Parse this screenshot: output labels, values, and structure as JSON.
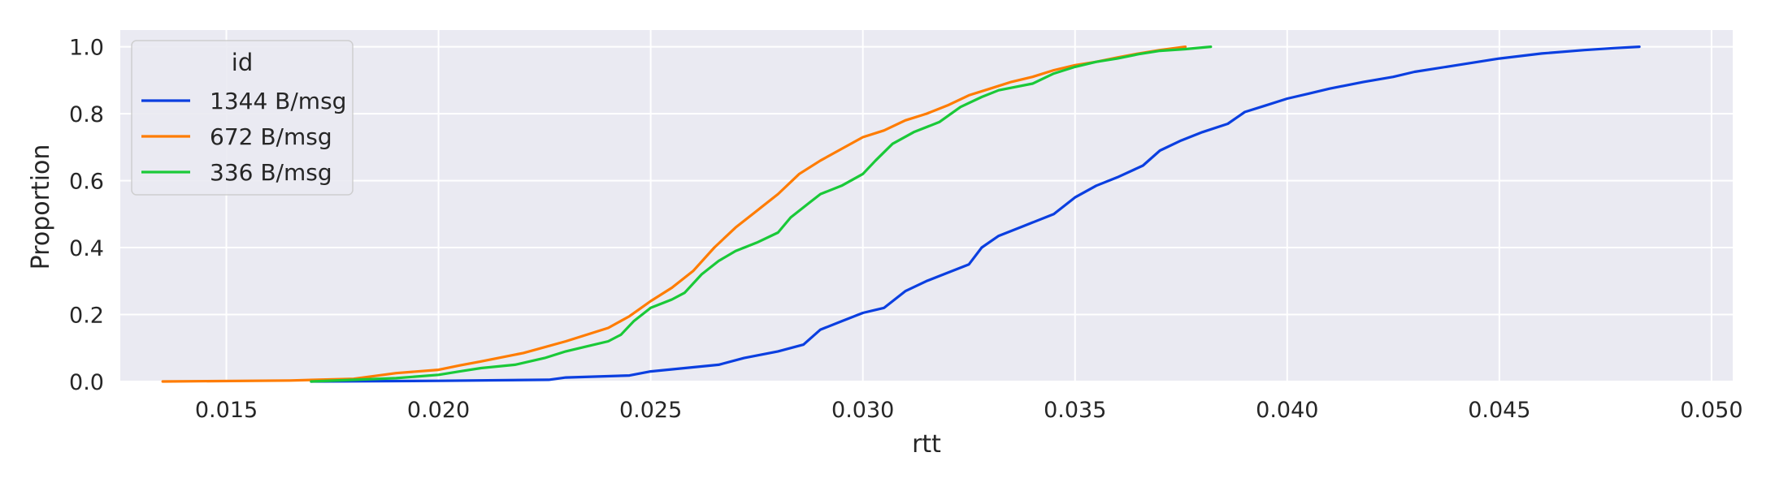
{
  "chart_data": {
    "type": "line",
    "xlabel": "rtt",
    "ylabel": "Proportion",
    "xlim": [
      0.0125,
      0.0505
    ],
    "ylim": [
      0,
      1.05
    ],
    "xticks": [
      0.015,
      0.02,
      0.025,
      0.03,
      0.035,
      0.04,
      0.045,
      0.05
    ],
    "xtick_labels": [
      "0.015",
      "0.020",
      "0.025",
      "0.030",
      "0.035",
      "0.040",
      "0.045",
      "0.050"
    ],
    "yticks": [
      0.0,
      0.2,
      0.4,
      0.6,
      0.8,
      1.0
    ],
    "ytick_labels": [
      "0.0",
      "0.2",
      "0.4",
      "0.6",
      "0.8",
      "1.0"
    ],
    "grid": true,
    "legend": {
      "title": "id",
      "position": "top-left"
    },
    "series": [
      {
        "name": "1344 B/msg",
        "color": "#0b3fe0",
        "points": [
          [
            0.017,
            0.0
          ],
          [
            0.02,
            0.002
          ],
          [
            0.0226,
            0.005
          ],
          [
            0.023,
            0.012
          ],
          [
            0.0245,
            0.018
          ],
          [
            0.025,
            0.03
          ],
          [
            0.0258,
            0.04
          ],
          [
            0.0266,
            0.05
          ],
          [
            0.0272,
            0.07
          ],
          [
            0.028,
            0.09
          ],
          [
            0.0286,
            0.11
          ],
          [
            0.029,
            0.155
          ],
          [
            0.0295,
            0.18
          ],
          [
            0.03,
            0.205
          ],
          [
            0.0305,
            0.22
          ],
          [
            0.031,
            0.27
          ],
          [
            0.0315,
            0.3
          ],
          [
            0.032,
            0.325
          ],
          [
            0.0325,
            0.35
          ],
          [
            0.0328,
            0.4
          ],
          [
            0.0332,
            0.435
          ],
          [
            0.0338,
            0.465
          ],
          [
            0.0345,
            0.5
          ],
          [
            0.035,
            0.55
          ],
          [
            0.0355,
            0.585
          ],
          [
            0.036,
            0.61
          ],
          [
            0.0366,
            0.645
          ],
          [
            0.037,
            0.69
          ],
          [
            0.0375,
            0.72
          ],
          [
            0.038,
            0.745
          ],
          [
            0.0386,
            0.77
          ],
          [
            0.039,
            0.805
          ],
          [
            0.0395,
            0.825
          ],
          [
            0.04,
            0.845
          ],
          [
            0.0405,
            0.86
          ],
          [
            0.041,
            0.875
          ],
          [
            0.0418,
            0.895
          ],
          [
            0.0425,
            0.91
          ],
          [
            0.043,
            0.925
          ],
          [
            0.044,
            0.945
          ],
          [
            0.045,
            0.965
          ],
          [
            0.046,
            0.98
          ],
          [
            0.047,
            0.99
          ],
          [
            0.0477,
            0.996
          ],
          [
            0.0483,
            1.0
          ]
        ]
      },
      {
        "name": "672 B/msg",
        "color": "#ff7c00",
        "points": [
          [
            0.0135,
            0.0
          ],
          [
            0.0165,
            0.003
          ],
          [
            0.018,
            0.008
          ],
          [
            0.019,
            0.025
          ],
          [
            0.02,
            0.035
          ],
          [
            0.0205,
            0.048
          ],
          [
            0.021,
            0.06
          ],
          [
            0.022,
            0.085
          ],
          [
            0.023,
            0.12
          ],
          [
            0.024,
            0.16
          ],
          [
            0.0245,
            0.195
          ],
          [
            0.025,
            0.24
          ],
          [
            0.0255,
            0.28
          ],
          [
            0.026,
            0.33
          ],
          [
            0.0265,
            0.4
          ],
          [
            0.027,
            0.46
          ],
          [
            0.0275,
            0.51
          ],
          [
            0.028,
            0.56
          ],
          [
            0.0285,
            0.62
          ],
          [
            0.029,
            0.66
          ],
          [
            0.0295,
            0.695
          ],
          [
            0.03,
            0.73
          ],
          [
            0.0305,
            0.75
          ],
          [
            0.031,
            0.78
          ],
          [
            0.0315,
            0.8
          ],
          [
            0.032,
            0.825
          ],
          [
            0.0325,
            0.855
          ],
          [
            0.033,
            0.875
          ],
          [
            0.0335,
            0.895
          ],
          [
            0.034,
            0.91
          ],
          [
            0.0345,
            0.93
          ],
          [
            0.035,
            0.945
          ],
          [
            0.0355,
            0.955
          ],
          [
            0.036,
            0.968
          ],
          [
            0.0365,
            0.98
          ],
          [
            0.037,
            0.99
          ],
          [
            0.0376,
            1.0
          ]
        ]
      },
      {
        "name": "336 B/msg",
        "color": "#1ac938",
        "points": [
          [
            0.017,
            0.0
          ],
          [
            0.019,
            0.01
          ],
          [
            0.02,
            0.02
          ],
          [
            0.0205,
            0.03
          ],
          [
            0.021,
            0.04
          ],
          [
            0.0218,
            0.05
          ],
          [
            0.0225,
            0.07
          ],
          [
            0.023,
            0.09
          ],
          [
            0.0235,
            0.105
          ],
          [
            0.024,
            0.12
          ],
          [
            0.0243,
            0.14
          ],
          [
            0.0246,
            0.18
          ],
          [
            0.025,
            0.22
          ],
          [
            0.0255,
            0.245
          ],
          [
            0.0258,
            0.265
          ],
          [
            0.0262,
            0.32
          ],
          [
            0.0266,
            0.36
          ],
          [
            0.027,
            0.39
          ],
          [
            0.0275,
            0.415
          ],
          [
            0.028,
            0.445
          ],
          [
            0.0283,
            0.49
          ],
          [
            0.0287,
            0.53
          ],
          [
            0.029,
            0.56
          ],
          [
            0.0295,
            0.585
          ],
          [
            0.03,
            0.62
          ],
          [
            0.0303,
            0.66
          ],
          [
            0.0307,
            0.71
          ],
          [
            0.0312,
            0.745
          ],
          [
            0.0318,
            0.775
          ],
          [
            0.0323,
            0.82
          ],
          [
            0.0328,
            0.85
          ],
          [
            0.0332,
            0.87
          ],
          [
            0.034,
            0.89
          ],
          [
            0.0345,
            0.92
          ],
          [
            0.035,
            0.94
          ],
          [
            0.0355,
            0.955
          ],
          [
            0.036,
            0.965
          ],
          [
            0.0365,
            0.978
          ],
          [
            0.037,
            0.988
          ],
          [
            0.0376,
            0.993
          ],
          [
            0.0382,
            1.0
          ]
        ]
      }
    ]
  }
}
